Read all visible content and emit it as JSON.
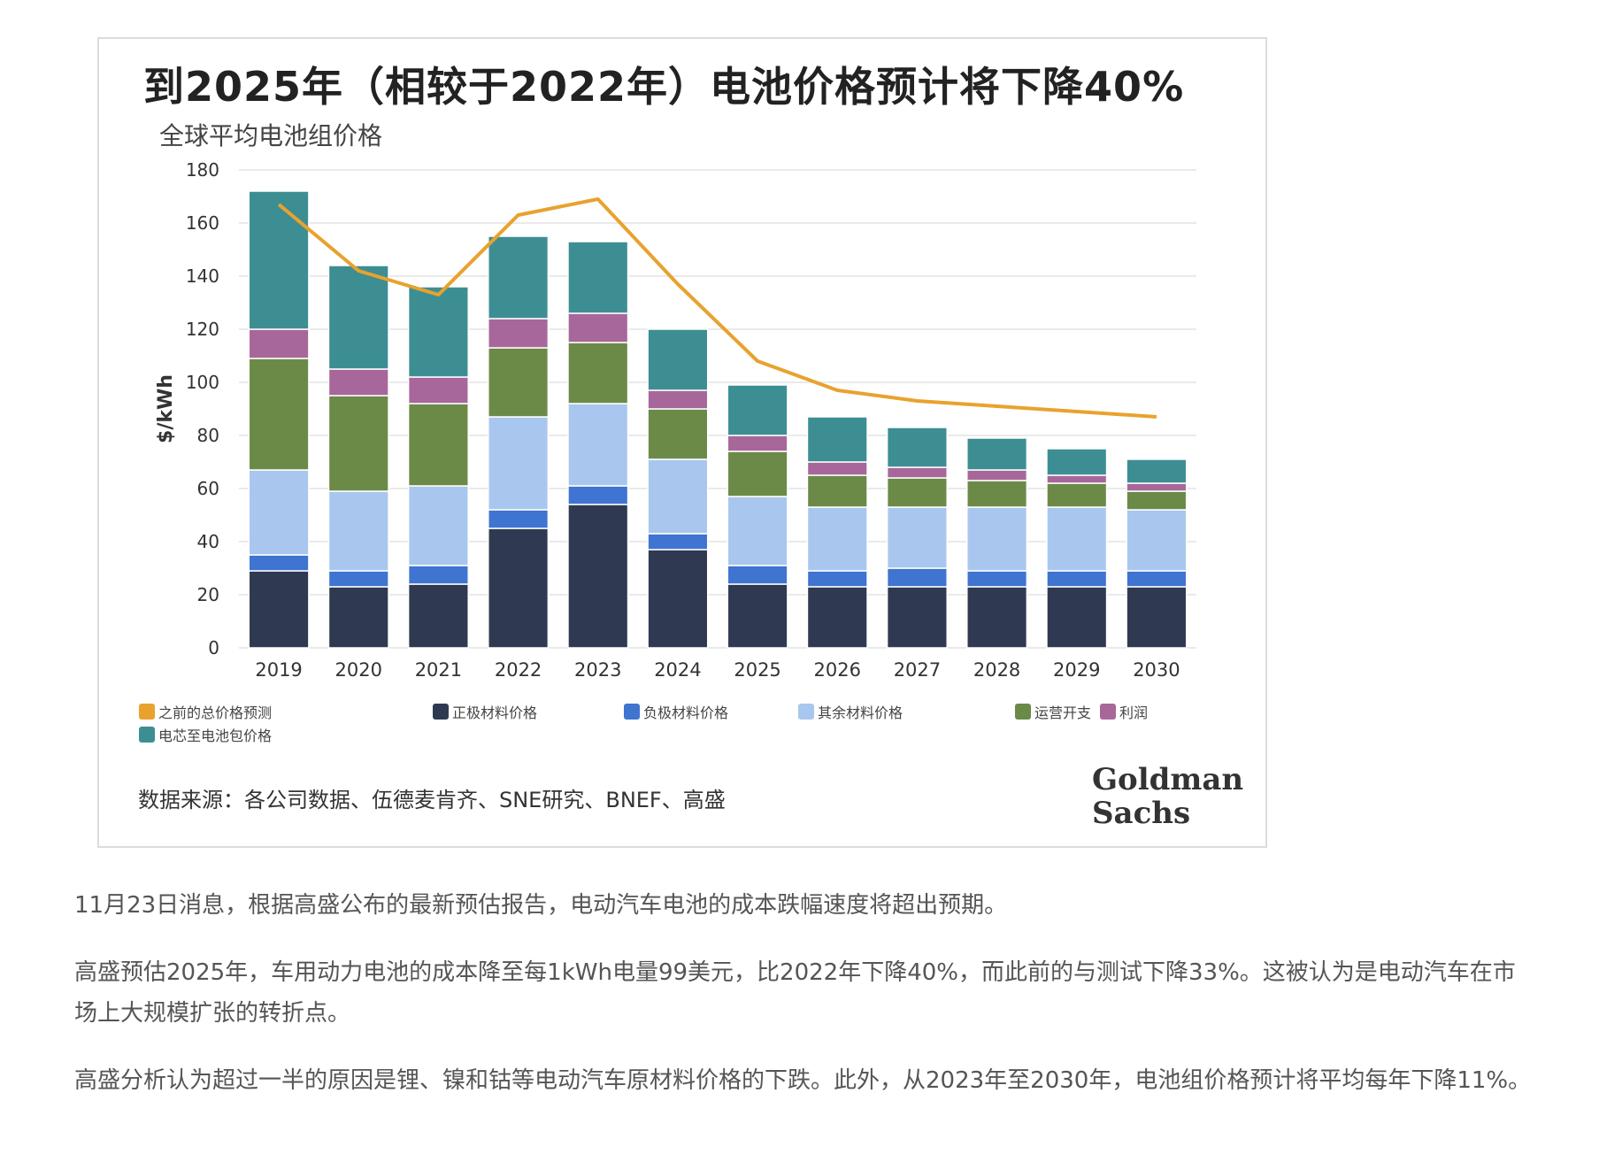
{
  "colors": {
    "cathode": "#2f3a52",
    "anode": "#3f74d0",
    "other_materials": "#a9c7ee",
    "operating": "#6b8a48",
    "profit": "#a8679a",
    "cell_to_pack": "#3d8e93",
    "previous_forecast": "#e8a22e"
  },
  "chart_data": {
    "type": "bar",
    "stacked": true,
    "title": "到2025年（相较于2022年）电池价格预计将下降40%",
    "subtitle": "全球平均电池组价格",
    "ylabel": "$/kWh",
    "ylim": [
      0,
      180
    ],
    "yticks": [
      "0",
      "20",
      "40",
      "60",
      "80",
      "100",
      "120",
      "140",
      "160",
      "180"
    ],
    "grid": true,
    "legend_position": "bottom",
    "categories": [
      "2019",
      "2020",
      "2021",
      "2022",
      "2023",
      "2024",
      "2025",
      "2026",
      "2027",
      "2028",
      "2029",
      "2030"
    ],
    "series": [
      {
        "name": "正极材料价格",
        "color_key": "cathode",
        "values": [
          29,
          23,
          24,
          45,
          54,
          37,
          24,
          23,
          23,
          23,
          23,
          23
        ]
      },
      {
        "name": "负极材料价格",
        "color_key": "anode",
        "values": [
          6,
          6,
          7,
          7,
          7,
          6,
          7,
          6,
          7,
          6,
          6,
          6
        ]
      },
      {
        "name": "其余材料价格",
        "color_key": "other_materials",
        "values": [
          32,
          30,
          30,
          35,
          31,
          28,
          26,
          24,
          23,
          24,
          24,
          23
        ]
      },
      {
        "name": "运营开支",
        "color_key": "operating",
        "values": [
          42,
          36,
          31,
          26,
          23,
          19,
          17,
          12,
          11,
          10,
          9,
          7
        ]
      },
      {
        "name": "利润",
        "color_key": "profit",
        "values": [
          11,
          10,
          10,
          11,
          11,
          7,
          6,
          5,
          4,
          4,
          3,
          3
        ]
      },
      {
        "name": "电芯至电池包价格",
        "color_key": "cell_to_pack",
        "values": [
          52,
          39,
          34,
          31,
          27,
          23,
          19,
          17,
          15,
          12,
          10,
          9
        ]
      }
    ],
    "line_series": {
      "name": "之前的总价格预测",
      "color_key": "previous_forecast",
      "values": [
        167,
        142,
        133,
        163,
        169,
        137,
        108,
        97,
        93,
        91,
        89,
        87
      ]
    }
  },
  "source_text": "数据来源：各公司数据、伍德麦肯齐、SNE研究、BNEF、高盛",
  "brand_logo": [
    "Goldman",
    "Sachs"
  ],
  "article": {
    "p1": "11月23日消息，根据高盛公布的最新预估报告，电动汽车电池的成本跌幅速度将超出预期。",
    "p2": "高盛预估2025年，车用动力电池的成本降至每1kWh电量99美元，比2022年下降40%，而此前的与测试下降33%。这被认为是电动汽车在市场上大规模扩张的转折点。",
    "p3": "高盛分析认为超过一半的原因是锂、镍和钴等电动汽车原材料价格的下跌。此外，从2023年至2030年，电池组价格预计将平均每年下降11%。"
  }
}
